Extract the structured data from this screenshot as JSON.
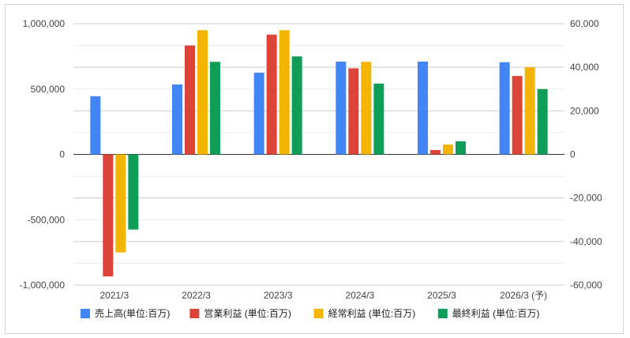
{
  "chart_data": {
    "type": "bar",
    "categories": [
      "2021/3",
      "2022/3",
      "2023/3",
      "2024/3",
      "2025/3",
      "2026/3 (予)"
    ],
    "series": [
      {
        "name": "売上高(単位:百万)",
        "axis": "left",
        "color": "#4285f4",
        "values": [
          445000,
          535000,
          625000,
          710000,
          710000,
          705000
        ]
      },
      {
        "name": "営業利益 (単位:百万)",
        "axis": "right",
        "color": "#db4437",
        "values": [
          -56000,
          50000,
          55000,
          39500,
          2000,
          36000
        ]
      },
      {
        "name": "経常利益 (単位:百万)",
        "axis": "right",
        "color": "#f4b400",
        "values": [
          -45000,
          57000,
          57000,
          42500,
          4500,
          40000
        ]
      },
      {
        "name": "最終利益 (単位:百万)",
        "axis": "right",
        "color": "#0f9d58",
        "values": [
          -34500,
          42500,
          45000,
          32500,
          6000,
          30000
        ]
      }
    ],
    "y_left": {
      "range": [
        -1000000,
        1000000
      ],
      "ticks": [
        1000000,
        500000,
        0,
        -500000,
        -1000000
      ],
      "tick_labels": [
        "1,000,000",
        "500,000",
        "0",
        "-500,000",
        "-1,000,000"
      ]
    },
    "y_right": {
      "range": [
        -60000,
        60000
      ],
      "ticks": [
        60000,
        40000,
        20000,
        0,
        -20000,
        -40000,
        -60000
      ],
      "tick_labels": [
        "60,000",
        "40,000",
        "20,000",
        "0",
        "-20,000",
        "-40,000",
        "-60,000"
      ]
    },
    "grid": true,
    "legend_position": "bottom"
  }
}
